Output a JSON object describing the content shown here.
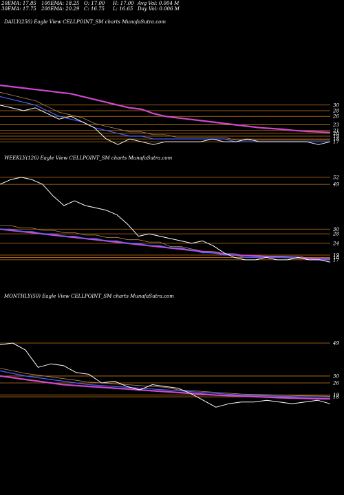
{
  "header": {
    "ema20": "20EMA: 17.85",
    "ema100": "100EMA: 18.25",
    "open": "O: 17.00",
    "high": "H: 17.00",
    "avg_vol": "Avg Vol: 0.004  M",
    "ema30": "30EMA: 17.75",
    "ema200": "200EMA: 20.29",
    "close": "C: 16.75",
    "low": "L: 16.65",
    "day_vol": "Day Vol: 0.006  M"
  },
  "colors": {
    "price": "#ffffff",
    "ema_short": "#4a64ff",
    "ema_long": "#d048d0",
    "sma": "#b88a58",
    "level": "#c87814"
  },
  "chart_data": [
    {
      "type": "line",
      "title": "DAILY(250) Eagle  View  CELLPOINT_SM charts MunafaSutra.com",
      "ylim": [
        10,
        55
      ],
      "level_ticks": [
        30,
        28,
        26,
        23,
        21,
        20,
        19,
        18,
        17
      ],
      "series": [
        {
          "values": [
            30,
            29,
            28,
            29,
            27,
            25,
            26,
            24,
            22,
            18,
            16,
            18,
            17,
            16,
            17,
            17,
            17,
            17,
            18,
            17,
            17,
            18,
            17,
            17,
            17,
            17,
            17,
            16,
            17
          ]
        },
        {
          "values": [
            33,
            32,
            31,
            30,
            28,
            26,
            25,
            24,
            22,
            21,
            20,
            19,
            19,
            18,
            18,
            18,
            18,
            18,
            18,
            18,
            17,
            17,
            17,
            17,
            17,
            17,
            17,
            17,
            17
          ]
        },
        {
          "values": [
            37,
            36.5,
            36,
            35.5,
            35,
            34.5,
            34,
            33,
            32,
            31,
            30,
            29,
            28.5,
            27,
            26,
            25.5,
            25,
            24.5,
            24,
            23.5,
            23,
            22.5,
            22,
            21.7,
            21.4,
            21,
            20.7,
            20.5,
            20.3
          ]
        }
      ]
    },
    {
      "type": "line",
      "title": "WEEKLY(126) Eagle  View  CELLPOINT_SM charts MunafaSutra.com",
      "ylim": [
        12,
        54
      ],
      "level_ticks": [
        52,
        49,
        30,
        28,
        24,
        19,
        18,
        17
      ],
      "series": [
        {
          "values": [
            49,
            51,
            52,
            51,
            49,
            44,
            40,
            42,
            40,
            39,
            38,
            36,
            32,
            27,
            28,
            27,
            26,
            25,
            24,
            25,
            23,
            20,
            18,
            17,
            17,
            18,
            17,
            17,
            18,
            17,
            17,
            16
          ]
        },
        {
          "values": [
            30,
            30,
            29,
            29,
            28,
            28,
            27,
            27,
            26,
            26,
            25,
            25,
            24,
            24,
            23,
            23,
            22,
            22,
            21,
            20,
            20,
            19,
            19,
            18,
            18,
            18,
            18,
            18,
            18,
            17,
            17,
            17
          ]
        },
        {
          "values": [
            30,
            29.5,
            29,
            28.5,
            28,
            27.5,
            27,
            26.5,
            26,
            25.5,
            25,
            24.5,
            24,
            23.5,
            23,
            22.5,
            22,
            21.5,
            21,
            20.5,
            20,
            19.5,
            19,
            18.8,
            18.6,
            18.4,
            18.2,
            18,
            17.8,
            17.6,
            17.4,
            17.2
          ]
        }
      ]
    },
    {
      "type": "line",
      "title": "MONTHLY(50) Eagle  View  CELLPOINT_SM charts MunafaSutra.com",
      "ylim": [
        5,
        70
      ],
      "level_ticks": [
        49,
        30,
        26,
        19,
        18
      ],
      "series": [
        {
          "values": [
            48,
            49,
            45,
            35,
            37,
            36,
            32,
            31,
            26,
            27,
            24,
            22,
            25,
            24,
            23,
            20,
            16,
            12,
            14,
            15,
            15,
            16,
            15,
            14,
            15,
            16,
            14
          ]
        },
        {
          "values": [
            33,
            31.5,
            30,
            29,
            28,
            27,
            26,
            25,
            24.5,
            24,
            23.5,
            23,
            22.5,
            22,
            21.5,
            21,
            20.5,
            20,
            19.5,
            19,
            18.8,
            18.6,
            18.4,
            18.2,
            18,
            17.9,
            17.8
          ]
        },
        {
          "values": [
            30,
            29,
            28,
            27,
            26,
            25,
            24.5,
            24,
            23.5,
            23,
            22.5,
            22,
            21.5,
            21,
            20.5,
            20,
            19.5,
            19,
            18.7,
            18.4,
            18.1,
            17.8,
            17.5,
            17.3,
            17.1,
            16.9,
            16.8
          ]
        }
      ]
    }
  ]
}
